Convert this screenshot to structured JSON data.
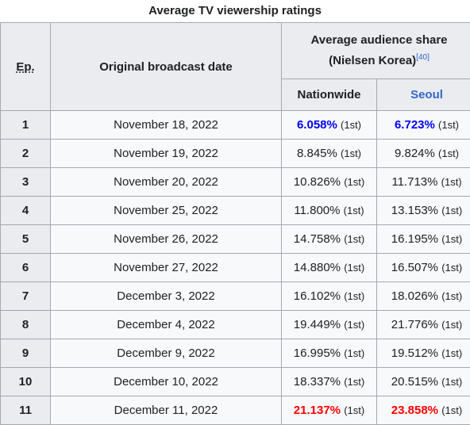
{
  "caption": "Average TV viewership ratings",
  "headers": {
    "ep": "Ep.",
    "date": "Original broadcast date",
    "share_line1": "Average audience share",
    "share_line2": "(Nielsen Korea)",
    "share_ref": "[40]",
    "nationwide": "Nationwide",
    "seoul": "Seoul"
  },
  "colors": {
    "highest": "#ff0000",
    "lowest": "#0000ff",
    "link": "#3366cc"
  },
  "rows": [
    {
      "ep": "1",
      "date": "November 18, 2022",
      "nationwide": "6.058%",
      "nationwide_rank": "(1st)",
      "seoul": "6.723%",
      "seoul_rank": "(1st)"
    },
    {
      "ep": "2",
      "date": "November 19, 2022",
      "nationwide": "8.845%",
      "nationwide_rank": "(1st)",
      "seoul": "9.824%",
      "seoul_rank": "(1st)"
    },
    {
      "ep": "3",
      "date": "November 20, 2022",
      "nationwide": "10.826%",
      "nationwide_rank": "(1st)",
      "seoul": "11.713%",
      "seoul_rank": "(1st)"
    },
    {
      "ep": "4",
      "date": "November 25, 2022",
      "nationwide": "11.800%",
      "nationwide_rank": "(1st)",
      "seoul": "13.153%",
      "seoul_rank": "(1st)"
    },
    {
      "ep": "5",
      "date": "November 26, 2022",
      "nationwide": "14.758%",
      "nationwide_rank": "(1st)",
      "seoul": "16.195%",
      "seoul_rank": "(1st)"
    },
    {
      "ep": "6",
      "date": "November 27, 2022",
      "nationwide": "14.880%",
      "nationwide_rank": "(1st)",
      "seoul": "16.507%",
      "seoul_rank": "(1st)"
    },
    {
      "ep": "7",
      "date": "December 3, 2022",
      "nationwide": "16.102%",
      "nationwide_rank": "(1st)",
      "seoul": "18.026%",
      "seoul_rank": "(1st)"
    },
    {
      "ep": "8",
      "date": "December 4, 2022",
      "nationwide": "19.449%",
      "nationwide_rank": "(1st)",
      "seoul": "21.776%",
      "seoul_rank": "(1st)"
    },
    {
      "ep": "9",
      "date": "December 9, 2022",
      "nationwide": "16.995%",
      "nationwide_rank": "(1st)",
      "seoul": "19.512%",
      "seoul_rank": "(1st)"
    },
    {
      "ep": "10",
      "date": "December 10, 2022",
      "nationwide": "18.337%",
      "nationwide_rank": "(1st)",
      "seoul": "20.515%",
      "seoul_rank": "(1st)"
    },
    {
      "ep": "11",
      "date": "December 11, 2022",
      "nationwide": "21.137%",
      "nationwide_rank": "(1st)",
      "seoul": "23.858%",
      "seoul_rank": "(1st)"
    }
  ]
}
